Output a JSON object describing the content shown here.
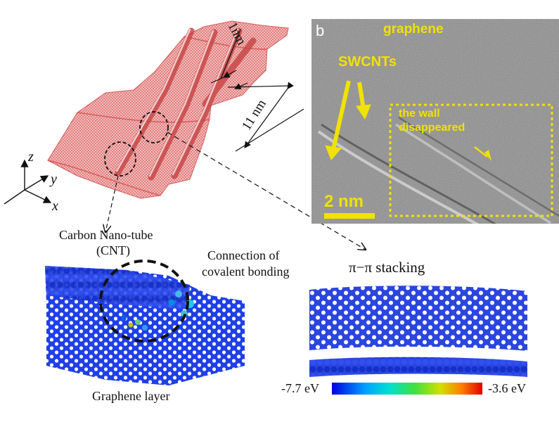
{
  "schematic": {
    "dim_small": "1nm",
    "dim_large": "11 nm",
    "axes": {
      "z": "z",
      "y": "y",
      "x": "x"
    }
  },
  "tem": {
    "panel_letter": "b",
    "graphene_label": "graphene",
    "swcnt_label": "SWCNTs",
    "wall_note_line1": "the wall",
    "wall_note_line2": "disappeared",
    "scale_bar": "2 nm",
    "colors": {
      "annotation": "#f1e200",
      "background": "#8a8a8a"
    }
  },
  "cnt_label_line1": "Carbon Nano-tube",
  "cnt_label_line2": "(CNT)",
  "covalent_label_line1": "Connection of",
  "covalent_label_line2": "covalent bonding",
  "stacking_label": "π−π stacking",
  "graphene_layer_label": "Graphene layer",
  "colorbar": {
    "min_label": "-7.7 eV",
    "max_label": "-3.6 eV",
    "stops": [
      "#0000e0",
      "#00a0ff",
      "#00e0d0",
      "#40e040",
      "#d0e000",
      "#ff8000",
      "#e00000"
    ]
  },
  "colors": {
    "schematic": "#e07070",
    "atoms": "#1f3fe8"
  }
}
